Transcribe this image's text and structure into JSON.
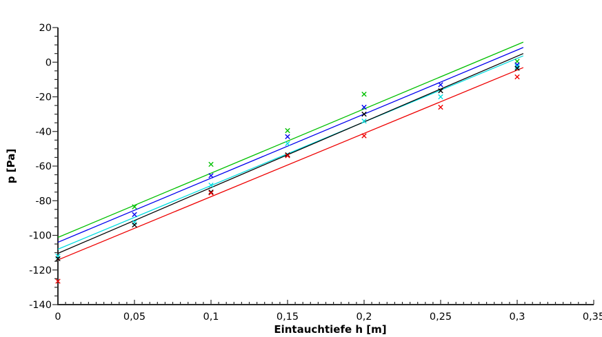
{
  "chart_data": {
    "type": "scatter",
    "title": "",
    "xlabel": "Eintauchtiefe h [m]",
    "ylabel": "p [Pa]",
    "xlim": [
      0,
      0.35
    ],
    "ylim": [
      -140,
      20
    ],
    "grid": false,
    "legend": "none",
    "axis_color": "#2a2a2a",
    "x_major_tick_step": 0.05,
    "x_minor_tick_step": 0.005,
    "y_major_tick_step": 20,
    "y_minor_tick_step": 5,
    "x_tick_labels": [
      "0",
      "0,05",
      "0,1",
      "0,15",
      "0,2",
      "0,25",
      "0,3",
      "0,35"
    ],
    "y_tick_labels": [
      "20",
      "0",
      "-20",
      "-40",
      "-60",
      "-80",
      "-100",
      "-120",
      "-140"
    ],
    "marker": "x",
    "series": [
      {
        "name": "green",
        "color": "#00c000",
        "points": [
          [
            0.05,
            -83.5
          ],
          [
            0.1,
            -59
          ],
          [
            0.15,
            -39.5
          ],
          [
            0.2,
            -18.5
          ],
          [
            0.3,
            0.5
          ]
        ],
        "fit_line": {
          "h": [
            0,
            0.304
          ],
          "p": [
            -101.2,
            11.6
          ]
        }
      },
      {
        "name": "blue",
        "color": "#0000ee",
        "points": [
          [
            0.05,
            -88
          ],
          [
            0.1,
            -65.5
          ],
          [
            0.15,
            -43
          ],
          [
            0.2,
            -26
          ],
          [
            0.25,
            -13
          ],
          [
            0.3,
            -1.5
          ]
        ],
        "fit_line": {
          "h": [
            0,
            0.304
          ],
          "p": [
            -104.0,
            8.5
          ]
        }
      },
      {
        "name": "cyan",
        "color": "#00dde0",
        "points": [
          [
            0,
            -112
          ],
          [
            0.05,
            -92.5
          ],
          [
            0.1,
            -71
          ],
          [
            0.15,
            -47
          ],
          [
            0.2,
            -34
          ],
          [
            0.25,
            -20
          ],
          [
            0.3,
            -2.5
          ]
        ],
        "fit_line": {
          "h": [
            0,
            0.304
          ],
          "p": [
            -108.0,
            3.7
          ]
        }
      },
      {
        "name": "black",
        "color": "#000000",
        "points": [
          [
            0,
            -113.5
          ],
          [
            0.05,
            -94
          ],
          [
            0.1,
            -75
          ],
          [
            0.15,
            -53.5
          ],
          [
            0.2,
            -30
          ],
          [
            0.25,
            -16.5
          ],
          [
            0.3,
            -3.5
          ]
        ],
        "fit_line": {
          "h": [
            0,
            0.304
          ],
          "p": [
            -110.4,
            5.0
          ]
        }
      },
      {
        "name": "red",
        "color": "#ee0000",
        "points": [
          [
            0,
            -126.5
          ],
          [
            0.1,
            -75.5
          ],
          [
            0.15,
            -54
          ],
          [
            0.2,
            -42.5
          ],
          [
            0.25,
            -26
          ],
          [
            0.3,
            -8.5
          ]
        ],
        "fit_line": {
          "h": [
            0,
            0.304
          ],
          "p": [
            -114.2,
            -3.1
          ]
        }
      }
    ]
  }
}
